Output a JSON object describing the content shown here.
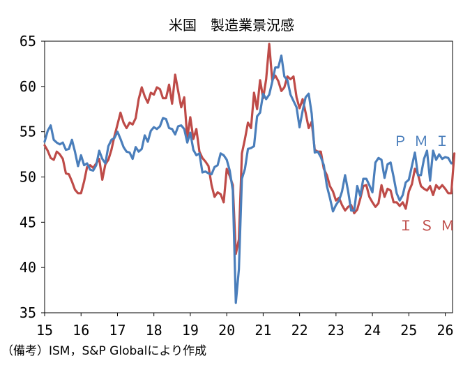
{
  "chart_data": {
    "type": "line",
    "title": "米国　製造業景況感",
    "xlabel": "",
    "ylabel": "",
    "ylim": [
      35,
      65
    ],
    "yticks": [
      35,
      40,
      45,
      50,
      55,
      60,
      65
    ],
    "xlim": [
      15,
      26.2
    ],
    "xtick_labels": [
      "15",
      "16",
      "17",
      "18",
      "19",
      "20",
      "21",
      "22",
      "23",
      "24",
      "25",
      "26"
    ],
    "grid": false,
    "colors": {
      "PMI": "#4a7ebb",
      "ISM": "#be4b48"
    },
    "series": [
      {
        "name": "PMI",
        "x_start": 15,
        "x_step": 0.08333,
        "values": [
          53.9,
          55.1,
          55.7,
          54.1,
          53.8,
          53.6,
          53.8,
          53.0,
          53.1,
          54.1,
          52.8,
          51.2,
          52.4,
          51.3,
          51.5,
          50.8,
          50.7,
          51.3,
          52.9,
          52.0,
          51.5,
          53.4,
          54.1,
          54.3,
          55.0,
          54.2,
          53.3,
          52.8,
          52.7,
          52.0,
          53.3,
          52.8,
          53.1,
          54.6,
          53.9,
          55.1,
          55.5,
          55.3,
          55.6,
          56.5,
          56.4,
          55.4,
          55.3,
          54.7,
          55.6,
          55.7,
          55.3,
          53.8,
          54.9,
          53.0,
          52.4,
          52.6,
          50.5,
          50.6,
          50.4,
          50.3,
          51.1,
          51.3,
          52.6,
          52.4,
          51.9,
          50.7,
          48.5,
          36.1,
          39.8,
          49.8,
          50.9,
          53.1,
          53.2,
          53.4,
          56.7,
          57.1,
          59.2,
          58.6,
          59.1,
          60.5,
          62.1,
          62.1,
          63.4,
          61.1,
          60.7,
          59.1,
          58.4,
          57.7,
          55.5,
          57.3,
          58.8,
          59.2,
          57.0,
          52.7,
          52.8,
          52.2,
          51.3,
          49.0,
          47.7,
          46.2,
          46.9,
          47.4,
          48.4,
          50.2,
          48.4,
          46.3,
          46.3,
          49.0,
          47.9,
          49.8,
          49.8,
          49.1,
          48.3,
          51.6,
          52.1,
          51.9,
          49.9,
          51.4,
          51.6,
          50.0,
          48.2,
          47.4,
          48.0,
          49.4,
          49.7,
          51.2,
          52.7,
          50.2,
          50.2,
          52.0,
          52.9,
          49.6,
          52.9,
          51.9,
          52.5,
          52.0,
          52.2,
          52.1,
          51.5
        ],
        "label": "ＰＭＩ"
      },
      {
        "name": "ISM",
        "x_start": 15,
        "x_step": 0.08333,
        "values": [
          53.5,
          52.9,
          52.1,
          51.9,
          52.8,
          52.5,
          52.0,
          50.4,
          50.3,
          49.5,
          48.6,
          48.2,
          48.2,
          49.5,
          51.1,
          51.3,
          51.0,
          51.5,
          52.0,
          49.7,
          51.4,
          51.9,
          53.0,
          54.5,
          55.8,
          57.1,
          56.0,
          55.4,
          56.0,
          55.8,
          56.5,
          58.6,
          59.9,
          58.9,
          58.2,
          59.3,
          59.1,
          59.9,
          59.7,
          58.7,
          58.7,
          60.2,
          58.1,
          61.3,
          59.5,
          57.7,
          58.8,
          54.3,
          56.6,
          54.2,
          55.3,
          52.8,
          52.1,
          51.7,
          51.2,
          49.1,
          47.8,
          48.3,
          48.1,
          47.2,
          50.9,
          50.1,
          49.1,
          41.5,
          43.1,
          52.6,
          54.2,
          56.0,
          55.4,
          59.3,
          57.5,
          60.7,
          58.7,
          60.8,
          64.7,
          60.7,
          61.2,
          60.6,
          59.5,
          59.9,
          61.1,
          60.8,
          61.1,
          58.8,
          57.6,
          58.6,
          57.1,
          55.4,
          56.1,
          53.0,
          52.8,
          52.8,
          50.9,
          50.2,
          49.0,
          48.4,
          47.4,
          47.7,
          46.9,
          46.3,
          46.7,
          46.9,
          46.0,
          46.4,
          47.6,
          49.0,
          49.1,
          47.8,
          47.2,
          46.7,
          47.1,
          49.1,
          47.8,
          48.7,
          48.5,
          47.2,
          47.2,
          46.8,
          47.2,
          46.5,
          48.4,
          49.2,
          50.9,
          50.3,
          49.0,
          48.7,
          48.5,
          49.0,
          48.0,
          49.1,
          48.7,
          49.1,
          48.7,
          48.2,
          48.2,
          52.6
        ],
        "label": "ＩＳＭ"
      }
    ]
  },
  "note": "（備考）ISM，S&P Globalにより作成"
}
